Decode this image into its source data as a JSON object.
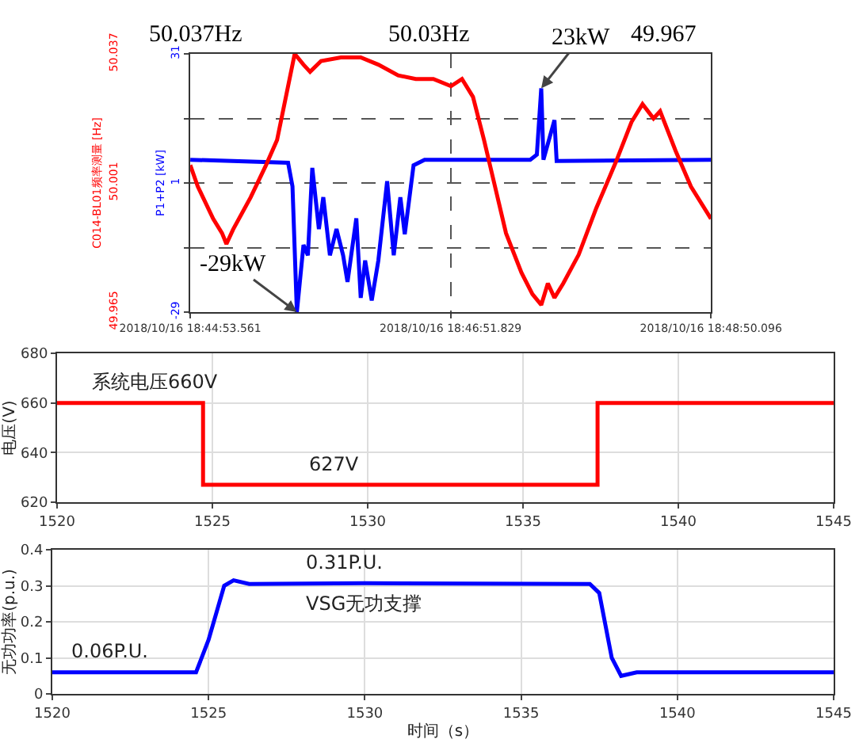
{
  "chart_data": [
    {
      "type": "line",
      "ylabel": "P1+P2 [kW]",
      "y2label": "C014-BL01频率测量 [Hz]",
      "grid": true,
      "xlim": [
        "2018-10-16T18:44:53.561",
        "2018-10-16T18:48:50.096"
      ],
      "xticks": [
        {
          "value": "2018-10-16T18:44:53.561",
          "label": "2018/10/16 18:44:53.561"
        },
        {
          "value": "2018-10-16T18:46:51.829",
          "label": "2018/10/16 18:46:51.829"
        },
        {
          "value": "2018-10-16T18:48:50.096",
          "label": "2018/10/16 18:48:50.096"
        }
      ],
      "ylim": [
        -29,
        31
      ],
      "yticks": [
        -29,
        {
          "value": -14,
          "label": null
        },
        1,
        {
          "value": 16,
          "label": null
        },
        31
      ],
      "y2lim": [
        49.965,
        50.037
      ],
      "y2ticks": [
        49.965,
        50.001,
        50.037
      ],
      "series": [
        {
          "color": "#ff0000",
          "axis": "y2",
          "x": [
            "2018-10-16T18:44:53.561",
            "2018-10-16T18:44:57",
            "2018-10-16T18:45:04",
            "2018-10-16T18:45:08",
            "2018-10-16T18:45:10",
            "2018-10-16T18:45:13",
            "2018-10-16T18:45:21",
            "2018-10-16T18:45:28",
            "2018-10-16T18:45:33",
            "2018-10-16T18:45:41",
            "2018-10-16T18:45:45",
            "2018-10-16T18:45:48",
            "2018-10-16T18:45:53",
            "2018-10-16T18:46:02",
            "2018-10-16T18:46:11",
            "2018-10-16T18:46:19",
            "2018-10-16T18:46:28",
            "2018-10-16T18:46:36",
            "2018-10-16T18:46:44",
            "2018-10-16T18:46:52",
            "2018-10-16T18:46:57",
            "2018-10-16T18:47:02",
            "2018-10-16T18:47:07",
            "2018-10-16T18:47:12",
            "2018-10-16T18:47:17",
            "2018-10-16T18:47:24",
            "2018-10-16T18:47:29",
            "2018-10-16T18:47:33",
            "2018-10-16T18:47:36",
            "2018-10-16T18:47:39",
            "2018-10-16T18:47:43",
            "2018-10-16T18:47:50",
            "2018-10-16T18:47:58",
            "2018-10-16T18:48:07",
            "2018-10-16T18:48:14",
            "2018-10-16T18:48:19",
            "2018-10-16T18:48:24",
            "2018-10-16T18:48:27",
            "2018-10-16T18:48:34",
            "2018-10-16T18:48:41",
            "2018-10-16T18:48:50.096"
          ],
          "values": [
            50.006,
            50.0,
            49.991,
            49.987,
            49.984,
            49.988,
            49.997,
            50.006,
            50.013,
            50.037,
            50.034,
            50.032,
            50.035,
            50.036,
            50.036,
            50.034,
            50.031,
            50.03,
            50.03,
            50.028,
            50.03,
            50.025,
            50.013,
            50.0,
            49.987,
            49.976,
            49.97,
            49.967,
            49.973,
            49.969,
            49.973,
            49.981,
            49.994,
            50.007,
            50.018,
            50.023,
            50.019,
            50.021,
            50.01,
            50.0,
            49.991
          ]
        },
        {
          "color": "#0000ff",
          "x": [
            "2018-10-16T18:44:53.561",
            "2018-10-16T18:45:38",
            "2018-10-16T18:45:40",
            "2018-10-16T18:45:42",
            "2018-10-16T18:45:45",
            "2018-10-16T18:45:47",
            "2018-10-16T18:45:49",
            "2018-10-16T18:45:52",
            "2018-10-16T18:45:54",
            "2018-10-16T18:45:57",
            "2018-10-16T18:46:00",
            "2018-10-16T18:46:03",
            "2018-10-16T18:46:05",
            "2018-10-16T18:46:09",
            "2018-10-16T18:46:11",
            "2018-10-16T18:46:13",
            "2018-10-16T18:46:16",
            "2018-10-16T18:46:19",
            "2018-10-16T18:46:23",
            "2018-10-16T18:46:26",
            "2018-10-16T18:46:29",
            "2018-10-16T18:46:31",
            "2018-10-16T18:46:35",
            "2018-10-16T18:46:40",
            "2018-10-16T18:47:28",
            "2018-10-16T18:47:31",
            "2018-10-16T18:47:33",
            "2018-10-16T18:47:34",
            "2018-10-16T18:47:39",
            "2018-10-16T18:47:40",
            "2018-10-16T18:48:50.096"
          ],
          "values": [
            6.4,
            5.7,
            0.2,
            -29,
            -13.4,
            -15.8,
            4.5,
            -9.7,
            -2.3,
            -15.8,
            -9.7,
            -15.8,
            -22,
            -7.2,
            -25.7,
            -17,
            -26.3,
            -17,
            1.4,
            -15.8,
            -2.3,
            -10.9,
            5.1,
            6.4,
            6.4,
            7.6,
            23,
            6.4,
            15.6,
            6.1,
            6.4
          ]
        }
      ],
      "annotations": [
        "50.037Hz",
        "50.03Hz",
        {
          "text": "23kW",
          "x": "2018-10-16T18:47:33",
          "y": 23
        },
        {
          "text": "-29kW",
          "x": "2018-10-16T18:45:42",
          "y": -29
        },
        "49.967"
      ]
    },
    {
      "type": "step",
      "ylabel": "电压(V)",
      "grid": true,
      "xlim": [
        1520,
        1545
      ],
      "xticks": [
        1520,
        1525,
        1530,
        1535,
        1540,
        1545
      ],
      "ylim": [
        620,
        680
      ],
      "yticks": [
        620,
        640,
        660,
        680
      ],
      "series": [
        {
          "color": "#ff0000",
          "x": [
            1520,
            1524.7,
            1537.4,
            1545
          ],
          "values": [
            660,
            627,
            660,
            660
          ]
        }
      ],
      "annotations": [
        {
          "text": "系统电压660V",
          "x": 1521,
          "y": 660
        },
        {
          "text": "627V",
          "x": 1528,
          "y": 627
        }
      ]
    },
    {
      "type": "line",
      "xlabel": "时间（s）",
      "ylabel": "无功功率(p.u.)",
      "grid": true,
      "xlim": [
        1520,
        1545
      ],
      "xticks": [
        1520,
        1525,
        1530,
        1535,
        1540,
        1545
      ],
      "ylim": [
        0,
        0.4
      ],
      "yticks": [
        0,
        0.1,
        0.2,
        0.3,
        0.4
      ],
      "series": [
        {
          "color": "#0000ff",
          "x": [
            1520,
            1524.6,
            1525.0,
            1525.5,
            1525.8,
            1526.3,
            1530,
            1537.2,
            1537.5,
            1537.9,
            1538.2,
            1538.7,
            1545
          ],
          "values": [
            0.06,
            0.06,
            0.15,
            0.3,
            0.315,
            0.305,
            0.307,
            0.305,
            0.28,
            0.1,
            0.05,
            0.06,
            0.06
          ]
        }
      ],
      "annotations": [
        {
          "text": "0.06P.U.",
          "x": 1520.5,
          "y": 0.06
        },
        {
          "text": "0.31P.U.",
          "x": 1528,
          "y": 0.307
        },
        {
          "text": "VSG无功支撑",
          "x": 1528,
          "y": 0.307
        }
      ]
    }
  ]
}
